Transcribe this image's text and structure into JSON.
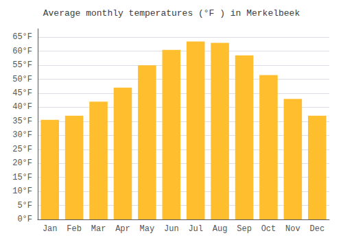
{
  "chart_data": {
    "type": "bar",
    "title": "Average monthly temperatures (°F ) in Merkelbeek",
    "categories": [
      "Jan",
      "Feb",
      "Mar",
      "Apr",
      "May",
      "Jun",
      "Jul",
      "Aug",
      "Sep",
      "Oct",
      "Nov",
      "Dec"
    ],
    "values": [
      35.5,
      37.0,
      42.0,
      47.0,
      55.0,
      60.5,
      63.5,
      63.0,
      58.5,
      51.5,
      43.0,
      37.0
    ],
    "color": "#FFBE2D",
    "ylim": [
      0,
      68
    ],
    "yticks": [
      {
        "value": 0,
        "label": "0°F"
      },
      {
        "value": 5,
        "label": "5°F"
      },
      {
        "value": 10,
        "label": "10°F"
      },
      {
        "value": 15,
        "label": "15°F"
      },
      {
        "value": 20,
        "label": "20°F"
      },
      {
        "value": 25,
        "label": "25°F"
      },
      {
        "value": 30,
        "label": "30°F"
      },
      {
        "value": 35,
        "label": "35°F"
      },
      {
        "value": 40,
        "label": "40°F"
      },
      {
        "value": 45,
        "label": "45°F"
      },
      {
        "value": 50,
        "label": "50°F"
      },
      {
        "value": 55,
        "label": "55°F"
      },
      {
        "value": 60,
        "label": "60°F"
      },
      {
        "value": 65,
        "label": "65°F"
      }
    ],
    "grid": true
  }
}
